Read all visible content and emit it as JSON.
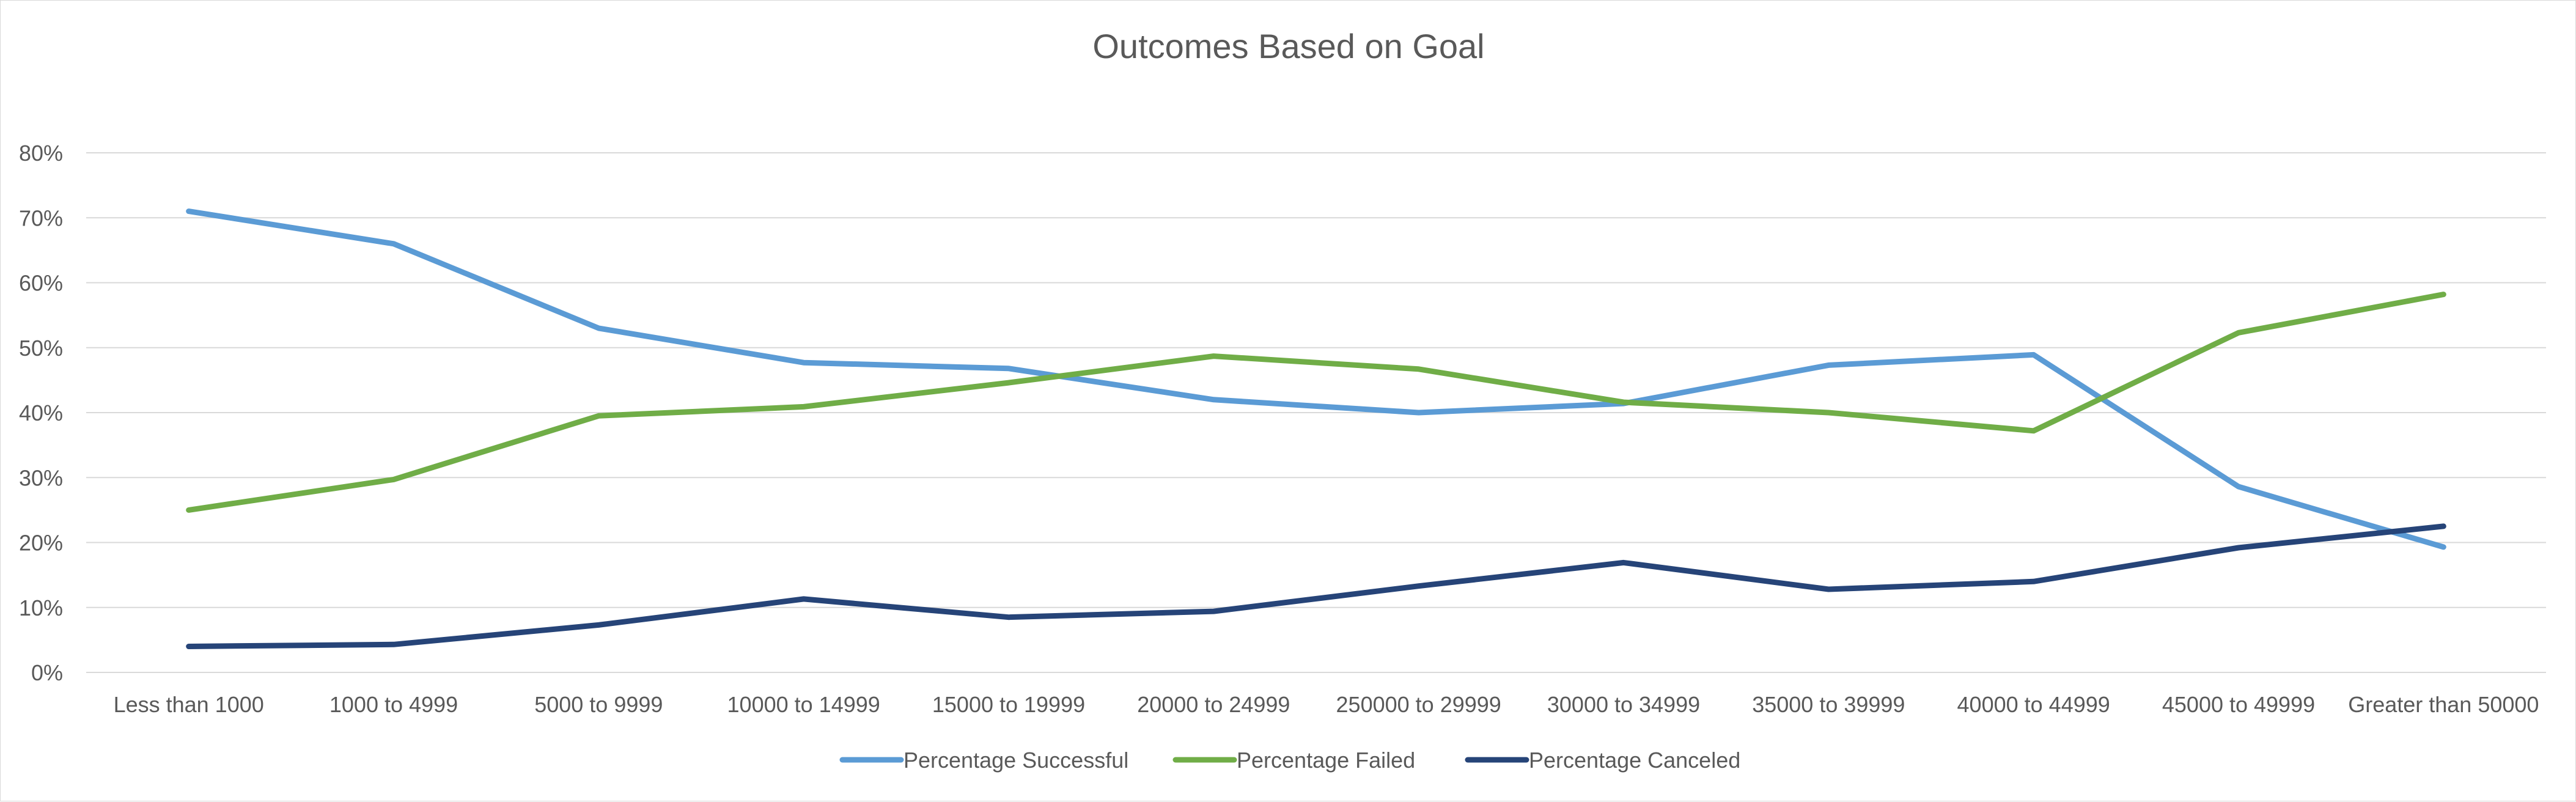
{
  "chart_data": {
    "type": "line",
    "title": "Outcomes Based on Goal",
    "xlabel": "",
    "ylabel": "",
    "categories": [
      "Less than 1000",
      "1000 to 4999",
      "5000 to 9999",
      "10000 to 14999",
      "15000 to 19999",
      "20000 to 24999",
      "250000 to 29999",
      "30000 to 34999",
      "35000 to 39999",
      "40000 to 44999",
      "45000 to 49999",
      "Greater than 50000"
    ],
    "y_ticks": [
      "0%",
      "10%",
      "20%",
      "30%",
      "40%",
      "50%",
      "60%",
      "70%",
      "80%"
    ],
    "ylim": [
      0,
      0.8
    ],
    "grid": true,
    "legend_position": "bottom",
    "series": [
      {
        "name": "Percentage Successful",
        "color": "#5b9bd5",
        "values": [
          0.71,
          0.66,
          0.53,
          0.477,
          0.468,
          0.42,
          0.4,
          0.414,
          0.473,
          0.489,
          0.286,
          0.193
        ]
      },
      {
        "name": "Percentage Failed",
        "color": "#70ad47",
        "values": [
          0.25,
          0.297,
          0.395,
          0.409,
          0.446,
          0.487,
          0.467,
          0.416,
          0.4,
          0.372,
          0.523,
          0.582
        ]
      },
      {
        "name": "Percentage Canceled",
        "color": "#264478",
        "values": [
          0.04,
          0.043,
          0.073,
          0.113,
          0.085,
          0.094,
          0.133,
          0.169,
          0.128,
          0.14,
          0.192,
          0.225
        ]
      }
    ]
  }
}
